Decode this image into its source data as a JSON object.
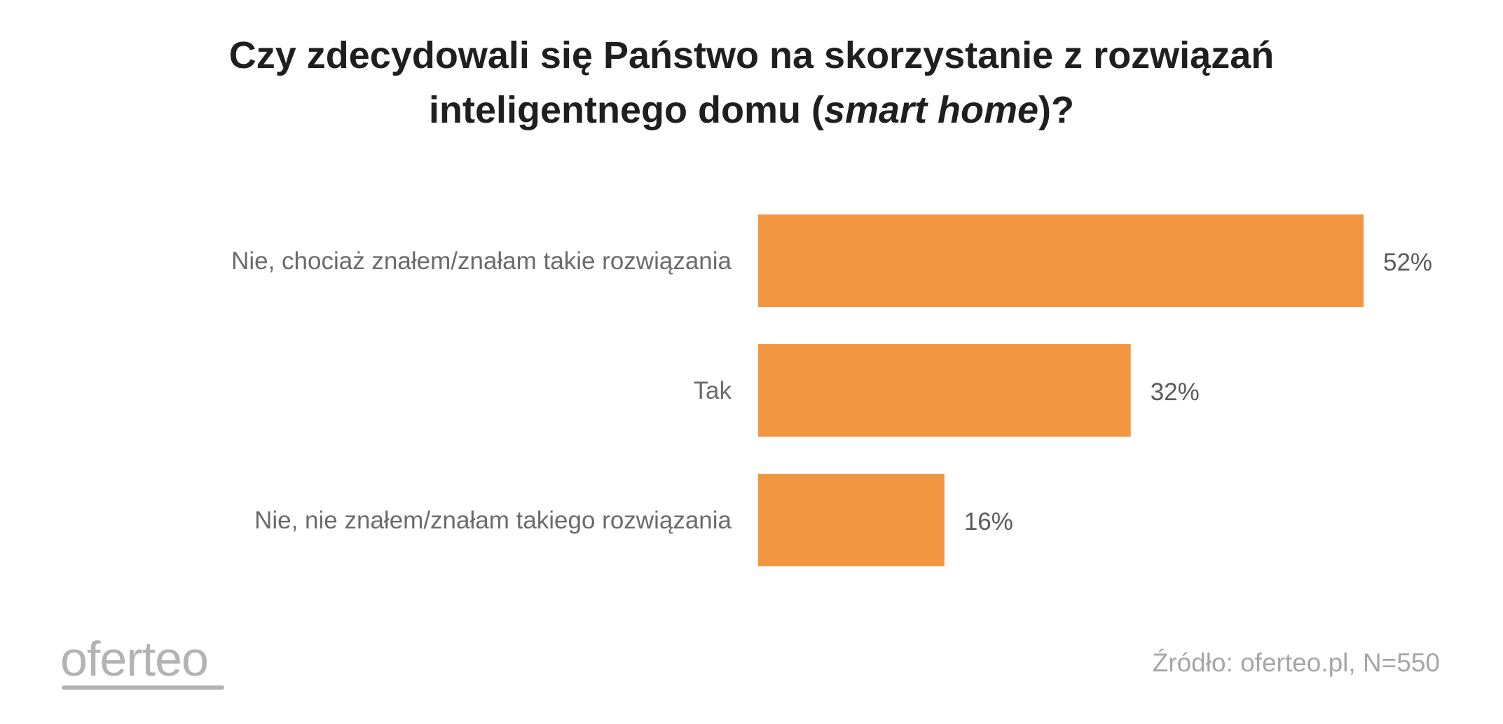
{
  "title": {
    "line1": "Czy zdecydowali się Państwo na skorzystanie z rozwiązań",
    "line2_prefix": "inteligentnego domu (",
    "line2_italic": "smart home",
    "line2_suffix": ")?"
  },
  "chart_data": {
    "type": "bar",
    "orientation": "horizontal",
    "title": "Czy zdecydowali się Państwo na skorzystanie z rozwiązań inteligentnego domu (smart home)?",
    "categories": [
      "Nie, chociaż znałem/znałam takie rozwiązania",
      "Tak",
      "Nie, nie znałem/znałam takiego rozwiązania"
    ],
    "values": [
      52,
      32,
      16
    ],
    "value_labels": [
      "52%",
      "32%",
      "16%"
    ],
    "unit": "%",
    "xlim": [
      0,
      52
    ],
    "bar_color": "#F39642",
    "grid": false,
    "legend": "none"
  },
  "logo": {
    "text": "oferteo"
  },
  "source": "Źródło: oferteo.pl, N=550",
  "colors": {
    "bar": "#F39642",
    "logo": "#b3b3b3",
    "source": "#a6a6a6"
  }
}
